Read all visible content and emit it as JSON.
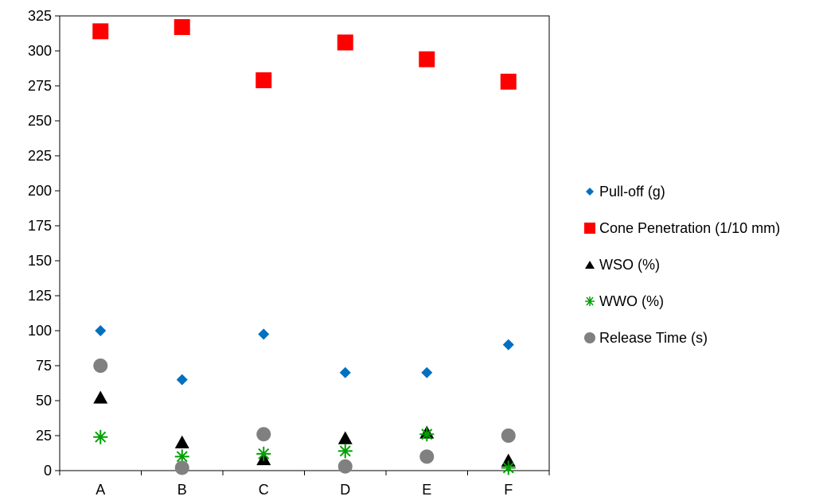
{
  "chart_data": {
    "type": "scatter",
    "title": "",
    "xlabel": "",
    "ylabel": "",
    "categories": [
      "A",
      "B",
      "C",
      "D",
      "E",
      "F"
    ],
    "ylim": [
      0,
      325
    ],
    "yticks": [
      0,
      25,
      50,
      75,
      100,
      125,
      150,
      175,
      200,
      225,
      250,
      275,
      300,
      325
    ],
    "grid": false,
    "legend_position": "right",
    "series": [
      {
        "name": "Pull-off (g)",
        "marker": "diamond",
        "color": "#0070C0",
        "values": [
          100,
          65,
          97.5,
          70,
          70,
          90
        ]
      },
      {
        "name": "Cone Penetration (1/10 mm)",
        "marker": "square",
        "color": "#FF0000",
        "values": [
          314,
          317,
          279,
          306,
          294,
          278
        ]
      },
      {
        "name": "WSO (%)",
        "marker": "triangle",
        "color": "#000000",
        "values": [
          52,
          20,
          8,
          23,
          27,
          7
        ]
      },
      {
        "name": "WWO (%)",
        "marker": "star",
        "color": "#00A000",
        "values": [
          24,
          10,
          12,
          14,
          26,
          2
        ]
      },
      {
        "name": "Release Time (s)",
        "marker": "circle",
        "color": "#808080",
        "values": [
          75,
          2,
          26,
          3,
          10,
          25
        ]
      }
    ]
  }
}
